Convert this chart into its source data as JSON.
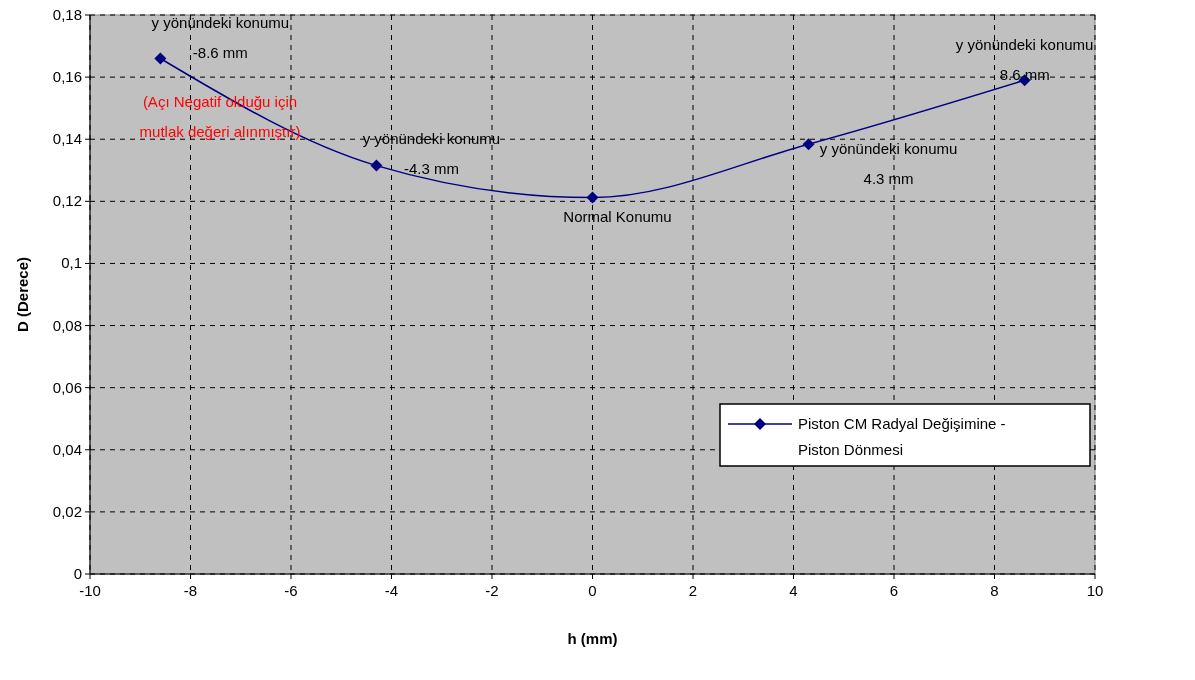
{
  "chart_data": {
    "type": "line",
    "xlabel": "h (mm)",
    "ylabel": "D (Derece)",
    "x": [
      -8.6,
      -4.3,
      0,
      4.3,
      8.6
    ],
    "series": [
      {
        "name": "Piston CM Radyal Değişimine - Piston Dönmesi",
        "color": "#000080",
        "values": [
          0.166,
          0.1315,
          0.1212,
          0.1384,
          0.159
        ]
      }
    ],
    "xlim": [
      -10,
      10
    ],
    "xticks": [
      -10,
      -8,
      -6,
      -4,
      -2,
      0,
      2,
      4,
      6,
      8,
      10
    ],
    "ylim": [
      0,
      0.18
    ],
    "yticks": [
      0,
      {
        "value": 0.02,
        "label": "0,02"
      },
      {
        "value": 0.04,
        "label": "0,04"
      },
      {
        "value": 0.06,
        "label": "0,06"
      },
      {
        "value": 0.08,
        "label": "0,08"
      },
      {
        "value": 0.1,
        "label": "0,1"
      },
      {
        "value": 0.12,
        "label": "0,12"
      },
      {
        "value": 0.14,
        "label": "0,14"
      },
      {
        "value": 0.16,
        "label": "0,16"
      },
      {
        "value": 0.18,
        "label": "0,18"
      }
    ],
    "grid": true,
    "legend": "bottom right",
    "marker": "diamond",
    "line_style": "solid",
    "annotations": [
      {
        "text": "y yönündeki konumu\n-8.6 mm",
        "x": -8.6,
        "y": 0.166
      },
      "(Açı Negatif olduğu için\nmutlak değeri alınmıştır)",
      {
        "text": "y yönündeki konumu\n-4.3 mm",
        "x": -4.3,
        "y": 0.1315
      },
      {
        "text": "Normal Konumu",
        "x": 0,
        "y": 0.1212
      },
      {
        "text": "y yönündeki konumu\n4.3 mm",
        "x": 4.3,
        "y": 0.1384
      },
      {
        "text": "y yönündeki konumu\n8.6 mm",
        "x": 8.6,
        "y": 0.159
      }
    ]
  }
}
